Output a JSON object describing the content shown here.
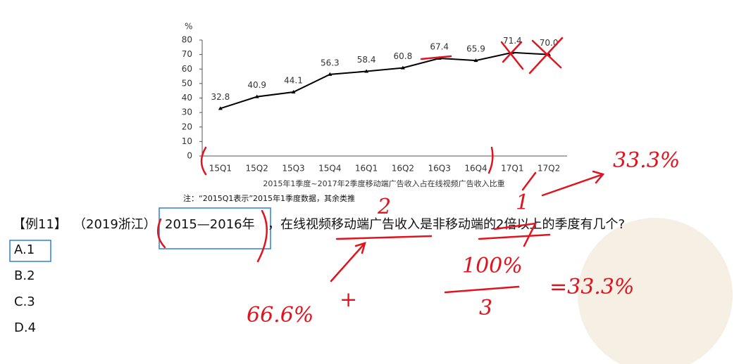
{
  "chart_data": {
    "type": "line",
    "y_label": "%",
    "categories": [
      "15Q1",
      "15Q2",
      "15Q3",
      "15Q4",
      "16Q1",
      "16Q2",
      "16Q3",
      "16Q4",
      "17Q1",
      "17Q2"
    ],
    "values": [
      32.8,
      40.9,
      44.1,
      56.3,
      58.4,
      60.8,
      67.4,
      65.9,
      71.4,
      70.0
    ],
    "value_labels": [
      "32.8",
      "40.9",
      "44.1",
      "56.3",
      "58.4",
      "60.8",
      "67.4",
      "65.9",
      "71.4",
      "70.0"
    ],
    "color": "#000000",
    "ylim": [
      0,
      80
    ],
    "yticks": [
      0,
      10,
      20,
      30,
      40,
      50,
      60,
      70,
      80
    ],
    "grid": false,
    "caption": "2015年1季度~2017年2季度移动端广告收入占在线视频广告收入比重",
    "note": "注：“2015Q1表示”2015年1季度数据，其余类推"
  },
  "question": {
    "number": "【例11】",
    "source": "（2019浙江）",
    "period": "2015—2016年",
    "text": "，在线视频移动端广告收入是非移动端的2倍以上的季度有几个?"
  },
  "options": [
    "A.1",
    "B.2",
    "C.3",
    "D.4"
  ],
  "handwriting": [
    "33.3%",
    "66.6%",
    "+",
    "2",
    "1",
    "100%",
    "3",
    "=33.3%"
  ]
}
